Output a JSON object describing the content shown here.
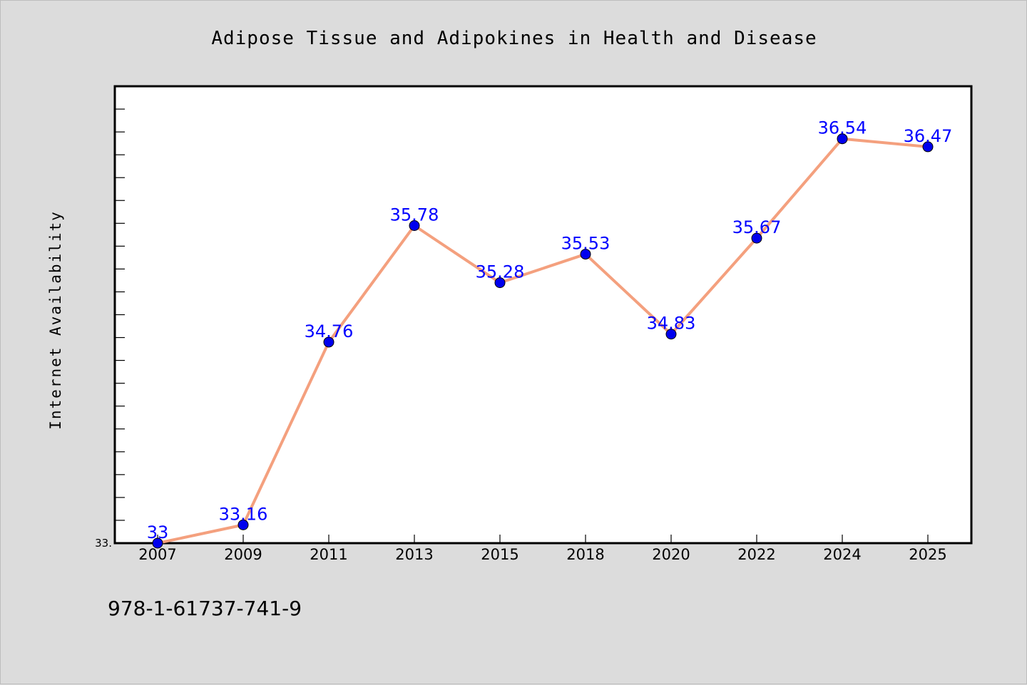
{
  "chart_data": {
    "type": "line",
    "title": "Adipose Tissue and Adipokines in Health and Disease",
    "xlabel": "",
    "ylabel": "Internet Availability",
    "categories": [
      "2007",
      "2009",
      "2011",
      "2013",
      "2015",
      "2018",
      "2020",
      "2022",
      "2024",
      "2025"
    ],
    "series": [
      {
        "values": [
          33,
          33.16,
          34.76,
          35.78,
          35.28,
          35.53,
          34.83,
          35.67,
          36.54,
          36.47
        ],
        "labels": [
          "33",
          "33.16",
          "34.76",
          "35.78",
          "35.28",
          "35.53",
          "34.83",
          "35.67",
          "36.54",
          "36.47"
        ],
        "line_color": "#f4a07e",
        "marker_color": "#0000ee"
      }
    ],
    "ylim": [
      33,
      37
    ],
    "yticks_shown": [
      "33."
    ],
    "grid": false,
    "legend": "none"
  },
  "footer": {
    "isbn": "978-1-61737-741-9"
  },
  "colors": {
    "background": "#dcdcdc",
    "plot_background": "#ffffff",
    "data_label": "#0000ff"
  }
}
